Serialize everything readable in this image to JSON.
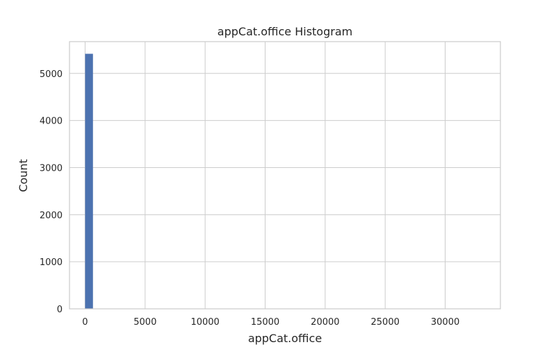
{
  "chart_data": {
    "type": "bar",
    "title": "appCat.office Histogram",
    "xlabel": "appCat.office",
    "ylabel": "Count",
    "xlim": [
      -1300,
      34600
    ],
    "ylim": [
      0,
      5675
    ],
    "xticks": [
      0,
      5000,
      10000,
      15000,
      20000,
      25000,
      30000
    ],
    "yticks": [
      0,
      1000,
      2000,
      3000,
      4000,
      5000
    ],
    "bins": [
      {
        "start": 0,
        "end": 655,
        "count": 5417
      }
    ],
    "grid": true,
    "bar_color": "#4c72b0",
    "grid_color": "#cccccc"
  }
}
